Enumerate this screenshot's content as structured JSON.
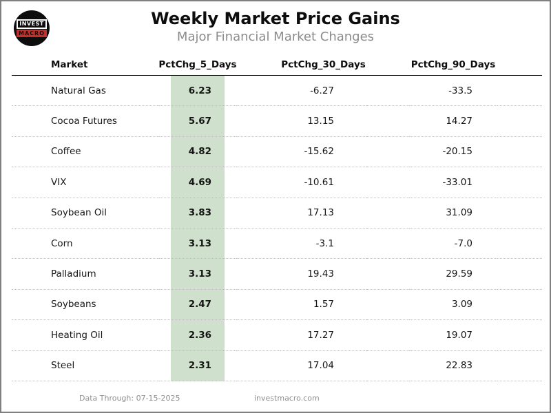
{
  "logo": {
    "line1": "INVEST",
    "line2": "MACRO"
  },
  "header": {
    "title": "Weekly Market Price Gains",
    "subtitle": "Major Financial Market Changes"
  },
  "table": {
    "columns": [
      "Market",
      "PctChg_5_Days",
      "PctChg_30_Days",
      "PctChg_90_Days"
    ],
    "rows": [
      {
        "market": "Natural Gas",
        "pctchg_5_days": "6.23",
        "pctchg_30_days": "-6.27",
        "pctchg_90_days": "-33.5"
      },
      {
        "market": "Cocoa Futures",
        "pctchg_5_days": "5.67",
        "pctchg_30_days": "13.15",
        "pctchg_90_days": "14.27"
      },
      {
        "market": "Coffee",
        "pctchg_5_days": "4.82",
        "pctchg_30_days": "-15.62",
        "pctchg_90_days": "-20.15"
      },
      {
        "market": "VIX",
        "pctchg_5_days": "4.69",
        "pctchg_30_days": "-10.61",
        "pctchg_90_days": "-33.01"
      },
      {
        "market": "Soybean Oil",
        "pctchg_5_days": "3.83",
        "pctchg_30_days": "17.13",
        "pctchg_90_days": "31.09"
      },
      {
        "market": "Corn",
        "pctchg_5_days": "3.13",
        "pctchg_30_days": "-3.1",
        "pctchg_90_days": "-7.0"
      },
      {
        "market": "Palladium",
        "pctchg_5_days": "3.13",
        "pctchg_30_days": "19.43",
        "pctchg_90_days": "29.59"
      },
      {
        "market": "Soybeans",
        "pctchg_5_days": "2.47",
        "pctchg_30_days": "1.57",
        "pctchg_90_days": "3.09"
      },
      {
        "market": "Heating Oil",
        "pctchg_5_days": "2.36",
        "pctchg_30_days": "17.27",
        "pctchg_90_days": "19.07"
      },
      {
        "market": "Steel",
        "pctchg_5_days": "2.31",
        "pctchg_30_days": "17.04",
        "pctchg_90_days": "22.83"
      }
    ]
  },
  "footer": {
    "data_through": "Data Through: 07-15-2025",
    "website": "investmacro.com"
  },
  "colors": {
    "highlight_green": "#cfe0cc",
    "accent_red": "#c2302c"
  },
  "chart_data": {
    "type": "table",
    "title": "Weekly Market Price Gains",
    "subtitle": "Major Financial Market Changes",
    "columns": [
      "Market",
      "PctChg_5_Days",
      "PctChg_30_Days",
      "PctChg_90_Days"
    ],
    "rows": [
      [
        "Natural Gas",
        6.23,
        -6.27,
        -33.5
      ],
      [
        "Cocoa Futures",
        5.67,
        13.15,
        14.27
      ],
      [
        "Coffee",
        4.82,
        -15.62,
        -20.15
      ],
      [
        "VIX",
        4.69,
        -10.61,
        -33.01
      ],
      [
        "Soybean Oil",
        3.83,
        17.13,
        31.09
      ],
      [
        "Corn",
        3.13,
        -3.1,
        -7.0
      ],
      [
        "Palladium",
        3.13,
        19.43,
        29.59
      ],
      [
        "Soybeans",
        2.47,
        1.57,
        3.09
      ],
      [
        "Heating Oil",
        2.36,
        17.27,
        19.07
      ],
      [
        "Steel",
        2.31,
        17.04,
        22.83
      ]
    ],
    "highlighted_column": "PctChg_5_Days",
    "highlight_color": "#cfe0cc",
    "layout": {
      "sorted_by": "PctChg_5_Days descending",
      "row_separators": "dotted",
      "header_rule": "solid"
    }
  }
}
